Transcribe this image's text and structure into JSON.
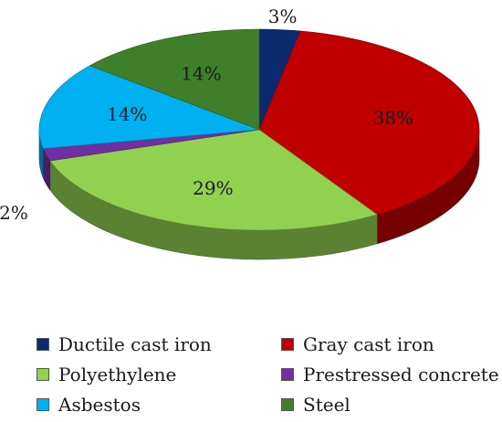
{
  "chart_data": {
    "type": "pie",
    "title": "",
    "slices": [
      {
        "label": "Ductile cast iron",
        "value": 3,
        "text": "3%",
        "color": "#0b2a6e"
      },
      {
        "label": "Gray cast iron",
        "value": 38,
        "text": "38%",
        "color": "#c00000"
      },
      {
        "label": "Polyethylene",
        "value": 29,
        "text": "29%",
        "color": "#92d050"
      },
      {
        "label": "Prestressed concrete",
        "value": 2,
        "text": "2%",
        "color": "#7030a0"
      },
      {
        "label": "Asbestos",
        "value": 14,
        "text": "14%",
        "color": "#00b0f0"
      },
      {
        "label": "Steel",
        "value": 14,
        "text": "14%",
        "color": "#3f7f2a"
      }
    ],
    "legend_position": "bottom",
    "style": "3d-pie"
  }
}
